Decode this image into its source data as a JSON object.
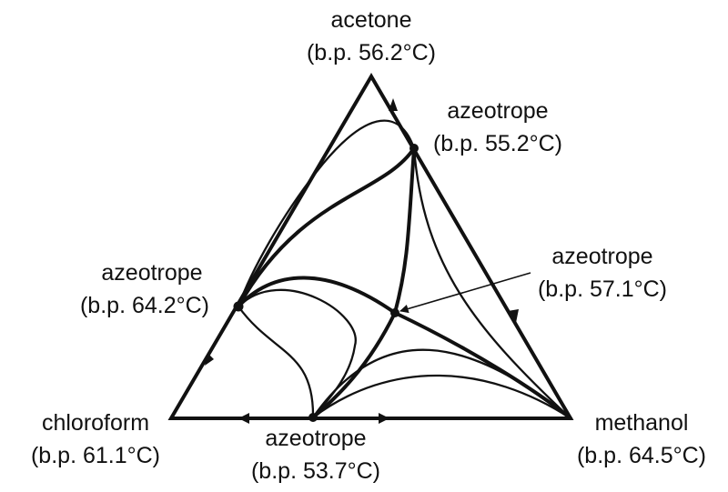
{
  "diagram": {
    "vertices": {
      "top": {
        "name": "acetone",
        "bp": "(b.p. 56.2°C)"
      },
      "left": {
        "name": "chloroform",
        "bp": "(b.p. 61.1°C)"
      },
      "right": {
        "name": "methanol",
        "bp": "(b.p. 64.5°C)"
      }
    },
    "azeotropes": {
      "acetone_methanol": {
        "name": "azeotrope",
        "bp": "(b.p. 55.2°C)"
      },
      "acetone_chloroform": {
        "name": "azeotrope",
        "bp": "(b.p. 64.2°C)"
      },
      "ternary": {
        "name": "azeotrope",
        "bp": "(b.p. 57.1°C)"
      },
      "chloroform_methanol": {
        "name": "azeotrope",
        "bp": "(b.p. 53.7°C)"
      }
    },
    "colors": {
      "ink": "#111111",
      "background": "#ffffff"
    }
  }
}
